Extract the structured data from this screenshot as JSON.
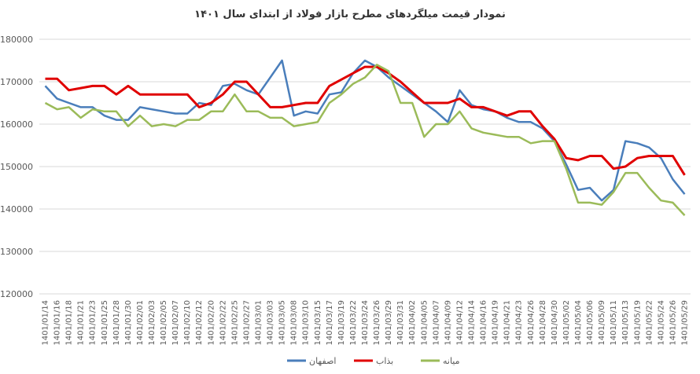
{
  "chart_data": {
    "type": "line",
    "title": "نمودار قیمت میلگردهای مطرح بازار فولاد از ابتدای سال ۱۴۰۱",
    "categories": [
      "1401/01/14",
      "1401/01/16",
      "1401/01/18",
      "1401/01/21",
      "1401/01/23",
      "1401/01/25",
      "1401/01/28",
      "1401/01/30",
      "1401/02/01",
      "1401/02/03",
      "1401/02/05",
      "1401/02/07",
      "1401/02/10",
      "1401/02/12",
      "1401/02/20",
      "1401/02/22",
      "1401/02/25",
      "1401/02/27",
      "1401/03/01",
      "1401/03/03",
      "1401/03/05",
      "1401/03/08",
      "1401/03/10",
      "1401/03/15",
      "1401/03/17",
      "1401/03/19",
      "1401/03/22",
      "1401/03/24",
      "1401/03/26",
      "1401/03/29",
      "1401/03/31",
      "1401/04/02",
      "1401/04/05",
      "1401/04/07",
      "1401/04/09",
      "1401/04/12",
      "1401/04/14",
      "1401/04/16",
      "1401/04/19",
      "1401/04/21",
      "1401/04/23",
      "1401/04/26",
      "1401/04/28",
      "1401/04/30",
      "1401/05/02",
      "1401/05/04",
      "1401/05/06",
      "1401/05/09",
      "1401/05/11",
      "1401/05/13",
      "1401/05/19",
      "1401/05/22",
      "1401/05/24",
      "1401/05/26",
      "1401/05/29"
    ],
    "series": [
      {
        "name": "اصفهان",
        "color": "#4a7ebb",
        "values": [
          169000,
          166000,
          165000,
          164000,
          164000,
          162000,
          161000,
          161000,
          164000,
          163500,
          163000,
          162500,
          162500,
          165000,
          164500,
          169000,
          169500,
          168000,
          167000,
          171000,
          175000,
          162000,
          163000,
          162500,
          167000,
          167500,
          172000,
          175000,
          173500,
          171000,
          169000,
          167000,
          165000,
          163000,
          160500,
          168000,
          164500,
          163500,
          163000,
          161500,
          160500,
          160500,
          159000,
          156000,
          150500,
          144500,
          145000,
          142000,
          144500,
          156000,
          155500,
          154500,
          152000,
          147000,
          143500
        ]
      },
      {
        "name": "بذاب",
        "color": "#e00000",
        "values": [
          170700,
          170700,
          168000,
          168500,
          169000,
          169000,
          167000,
          169000,
          167000,
          167000,
          167000,
          167000,
          167000,
          164000,
          165000,
          167000,
          170000,
          170000,
          167000,
          164000,
          164000,
          164500,
          165000,
          165000,
          169000,
          170500,
          172000,
          173500,
          173500,
          172000,
          170000,
          167500,
          165000,
          165000,
          165000,
          166000,
          164000,
          164000,
          163000,
          162000,
          163000,
          163000,
          159500,
          156500,
          152000,
          151500,
          152500,
          152500,
          149500,
          150000,
          152000,
          152500,
          152500,
          152500,
          148000
        ]
      },
      {
        "name": "میانه",
        "color": "#9bbb59",
        "values": [
          165000,
          163500,
          164000,
          161500,
          163500,
          163000,
          163000,
          159500,
          162000,
          159500,
          160000,
          159500,
          161000,
          161000,
          163000,
          163000,
          167000,
          163000,
          163000,
          161500,
          161500,
          159500,
          160000,
          160500,
          165000,
          167000,
          169500,
          171000,
          174000,
          172500,
          165000,
          165000,
          157000,
          160000,
          160000,
          163000,
          159000,
          158000,
          157500,
          157000,
          157000,
          155500,
          156000,
          156000,
          149500,
          141500,
          141500,
          141000,
          144000,
          148500,
          148500,
          145000,
          142000,
          141500,
          138500
        ]
      }
    ],
    "ylim": [
      120000,
      180000
    ],
    "yticks": [
      120000,
      130000,
      140000,
      150000,
      160000,
      170000,
      180000
    ],
    "grid": true
  }
}
